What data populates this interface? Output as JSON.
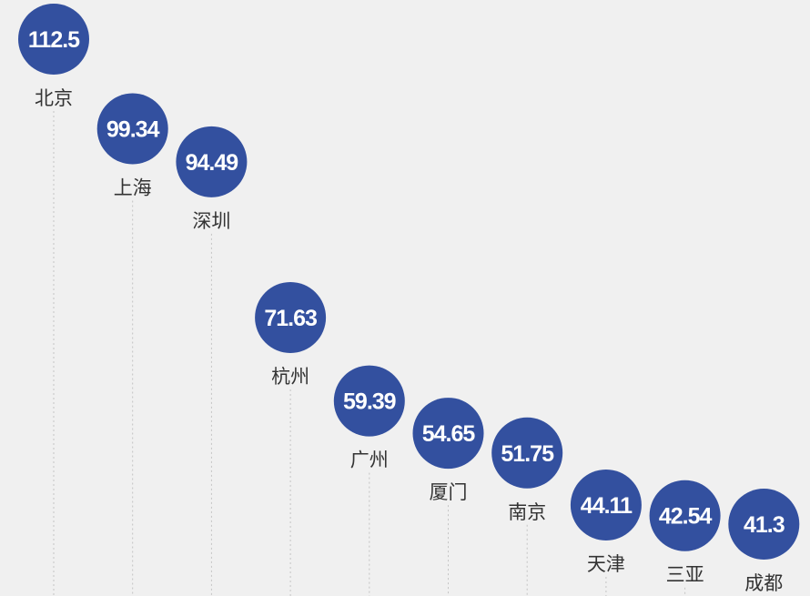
{
  "chart_data": {
    "type": "scatter",
    "title": "",
    "xlabel": "",
    "ylabel": "",
    "categories": [
      "北京",
      "上海",
      "深圳",
      "杭州",
      "广州",
      "厦门",
      "南京",
      "天津",
      "三亚",
      "成都"
    ],
    "values": [
      112.5,
      99.34,
      94.49,
      71.63,
      59.39,
      54.65,
      51.75,
      44.11,
      42.54,
      41.3
    ],
    "value_labels": [
      "112.5",
      "99.34",
      "94.49",
      "71.63",
      "59.39",
      "54.65",
      "51.75",
      "44.11",
      "42.54",
      "41.3"
    ],
    "colors": {
      "marker": "#33509f",
      "label_text": "#ffffff",
      "city_text": "#333333",
      "background": "#f0f0f0"
    },
    "grid": false,
    "legend": "none"
  }
}
